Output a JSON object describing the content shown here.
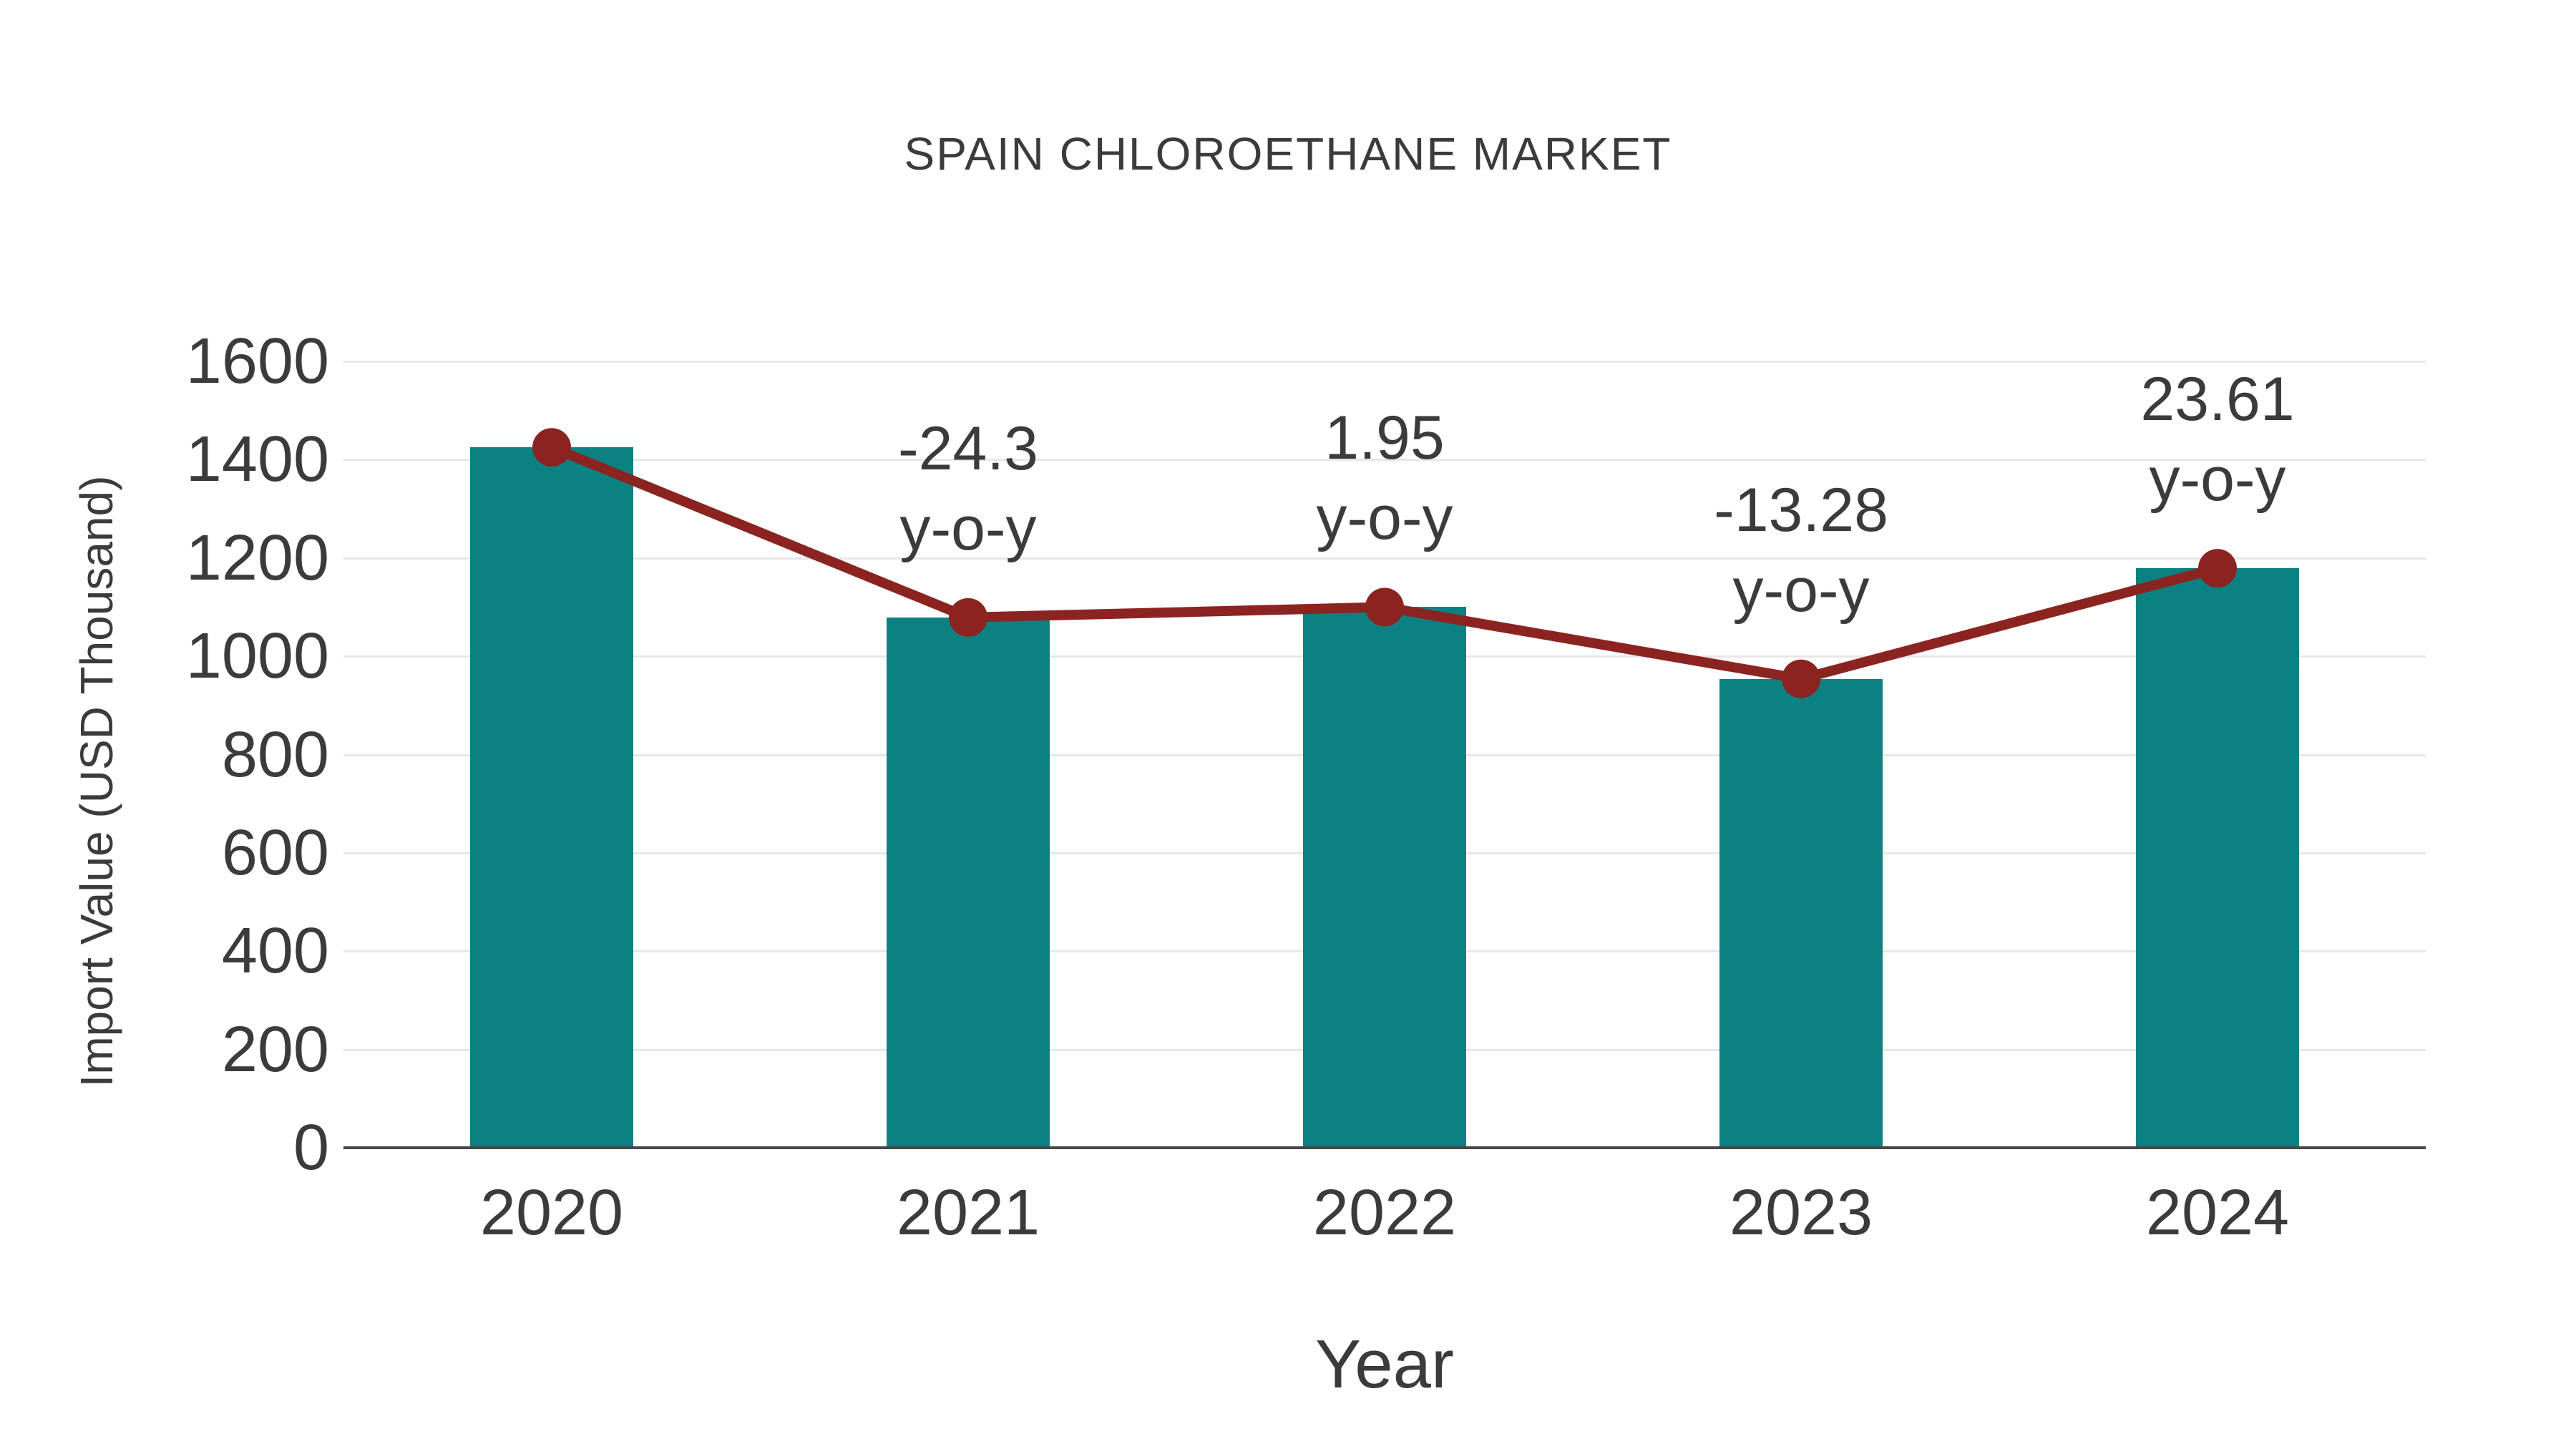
{
  "title": "SPAIN CHLOROETHANE MARKET",
  "axes": {
    "x_title": "Year",
    "y_title": "Import Value (USD Thousand)"
  },
  "chart_data": {
    "type": "bar",
    "title": "SPAIN CHLOROETHANE MARKET",
    "xlabel": "Year",
    "ylabel": "Import Value (USD Thousand)",
    "categories": [
      "2020",
      "2021",
      "2022",
      "2023",
      "2024"
    ],
    "series": [
      {
        "name": "Import Value bars",
        "type": "bar",
        "values": [
          1425,
          1079,
          1100,
          954,
          1179
        ]
      },
      {
        "name": "Import Value trend line",
        "type": "line",
        "values": [
          1425,
          1079,
          1100,
          954,
          1179
        ]
      }
    ],
    "annotations": [
      {
        "category": "2021",
        "line1": "-24.3",
        "line2": "y-o-y"
      },
      {
        "category": "2022",
        "line1": "1.95",
        "line2": "y-o-y"
      },
      {
        "category": "2023",
        "line1": "-13.28",
        "line2": "y-o-y"
      },
      {
        "category": "2024",
        "line1": "23.61",
        "line2": "y-o-y"
      }
    ],
    "yticks": [
      0,
      200,
      400,
      600,
      800,
      1000,
      1200,
      1400,
      1600
    ],
    "ylim": [
      0,
      1600
    ],
    "grid": true,
    "legend_position": "none"
  },
  "colors": {
    "bar": "#0c8182",
    "line": "#8b2421",
    "marker": "#8b2421",
    "text": "#3b3b3b",
    "grid": "#e7e7e7",
    "axis": "#474747",
    "background": "#ffffff"
  }
}
